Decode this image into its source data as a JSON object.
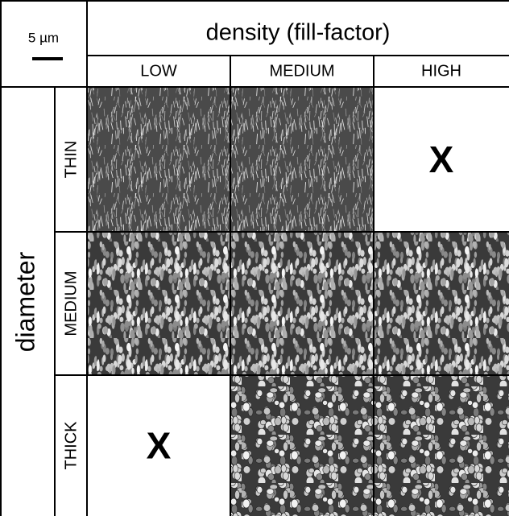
{
  "scale_bar": {
    "label": "5 µm"
  },
  "header": {
    "title": "density (fill-factor)",
    "columns": [
      "LOW",
      "MEDIUM",
      "HIGH"
    ]
  },
  "row_group": {
    "title": "diameter",
    "rows": [
      "THIN",
      "MEDIUM",
      "THICK"
    ]
  },
  "cells": [
    [
      null,
      null,
      "X"
    ],
    [
      null,
      null,
      null
    ],
    [
      "X",
      null,
      null
    ]
  ]
}
